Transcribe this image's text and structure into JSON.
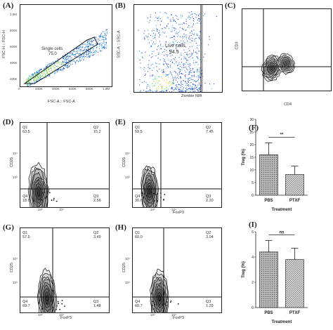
{
  "panels": {
    "A": {
      "label": "(A)",
      "xlabel": "FSC-A :: FSC-A",
      "ylabel": "FSC-H :: FSC-H",
      "gate_name": "Single cells",
      "gate_value": "75.0",
      "xticks": [
        "0",
        "200K",
        "400K",
        "600K",
        "800K",
        "1.0M"
      ],
      "yticks": [
        "200K",
        "400K",
        "600K",
        "800K",
        "1.0M"
      ]
    },
    "B": {
      "label": "(B)",
      "xlabel": "Zombie NIR",
      "ylabel": "SSC-A :: SSC-A",
      "gate_name": "Live cells",
      "gate_value": "94.5"
    },
    "C": {
      "label": "(C)",
      "xlabel": "CD4",
      "ylabel": "CD3",
      "q1": "Q1",
      "q1v": "39.2",
      "q2": "Q2",
      "q2v": "37.1",
      "q3": "Q3",
      "q3v": "12.6",
      "q4": "Q4",
      "q4v": "11.1"
    },
    "D": {
      "label": "(D)",
      "xlabel": "",
      "ylabel": "CD25",
      "q1": "Q1",
      "q1v": "63.5",
      "q2": "Q2",
      "q2v": "15.2",
      "q3": "Q3",
      "q3v": "2.56",
      "q4": "Q4",
      "q4v": "18.8"
    },
    "E": {
      "label": "(E)",
      "xlabel": "FoxP3",
      "ylabel": "CD25",
      "q1": "Q1",
      "q1v": "59.5",
      "q2": "Q2",
      "q2v": "7.45",
      "q3": "Q3",
      "q3v": "2.20",
      "q4": "Q4",
      "q4v": "30.8"
    },
    "G": {
      "label": "(G)",
      "xlabel": "FoxP3",
      "ylabel": "CD25",
      "q1": "Q1",
      "q1v": "57.5",
      "q2": "Q2",
      "q2v": "3.49",
      "q3": "Q3",
      "q3v": "1.48",
      "q4": "Q4",
      "q4v": "69.7"
    },
    "H": {
      "label": "(H)",
      "xlabel": "FoxP3",
      "ylabel": "CD25",
      "q1": "Q1",
      "q1v": "60.0",
      "q2": "Q2",
      "q2v": "3.04",
      "q3": "Q3",
      "q3v": "1.29",
      "q4": "Q4",
      "q4v": "60.7"
    },
    "F": {
      "label": "(F)"
    },
    "I": {
      "label": "(I)"
    }
  },
  "tick_labels": {
    "t2": "10²",
    "t3": "10³",
    "t4": "10⁴",
    "t5": "10⁵"
  },
  "chart_data": [
    {
      "panel": "F",
      "type": "bar",
      "categories": [
        "PBS",
        "PTXF"
      ],
      "values": [
        16,
        8.2
      ],
      "errors": [
        4.7,
        3.3
      ],
      "xlabel": "Treatment",
      "ylabel": "Treg (%)",
      "ylim": [
        0,
        30
      ],
      "yticks": [
        0,
        5,
        10,
        15,
        20,
        25,
        30
      ],
      "significance": "**"
    },
    {
      "panel": "I",
      "type": "bar",
      "categories": [
        "PBS",
        "PTXF"
      ],
      "values": [
        4.4,
        3.8
      ],
      "errors": [
        0.9,
        0.9
      ],
      "xlabel": "Treatment",
      "ylabel": "Treg (%)",
      "ylim": [
        0,
        6
      ],
      "yticks": [
        0,
        2,
        4,
        6
      ],
      "significance": "ns"
    }
  ]
}
